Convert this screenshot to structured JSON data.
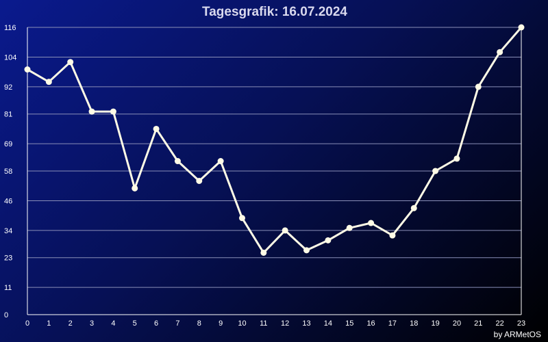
{
  "chart_data": {
    "type": "line",
    "title": "Tagesgrafik: 16.07.2024",
    "credit": "by ARMetOS",
    "x": [
      0,
      1,
      2,
      3,
      4,
      5,
      6,
      7,
      8,
      9,
      10,
      11,
      12,
      13,
      14,
      15,
      16,
      17,
      18,
      19,
      20,
      21,
      22,
      23
    ],
    "series": [
      {
        "values": [
          99,
          94,
          102,
          82,
          82,
          51,
          75,
          62,
          54,
          62,
          39,
          25,
          34,
          26,
          30,
          35,
          37,
          32,
          43,
          58,
          63,
          92,
          106,
          116
        ]
      }
    ],
    "yticks": [
      "0",
      "11",
      "23",
      "34",
      "46",
      "58",
      "69",
      "81",
      "92",
      "104",
      "116"
    ],
    "xticks": [
      "0",
      "1",
      "2",
      "3",
      "4",
      "5",
      "6",
      "7",
      "8",
      "9",
      "10",
      "11",
      "12",
      "13",
      "14",
      "15",
      "16",
      "17",
      "18",
      "19",
      "20",
      "21",
      "22",
      "23"
    ],
    "xlim": [
      0,
      23
    ],
    "ylim": [
      0,
      116
    ],
    "grid": true,
    "colors": {
      "line": "#fffbe6",
      "grid": "#8a8fb8",
      "axis": "#ffffff"
    }
  }
}
